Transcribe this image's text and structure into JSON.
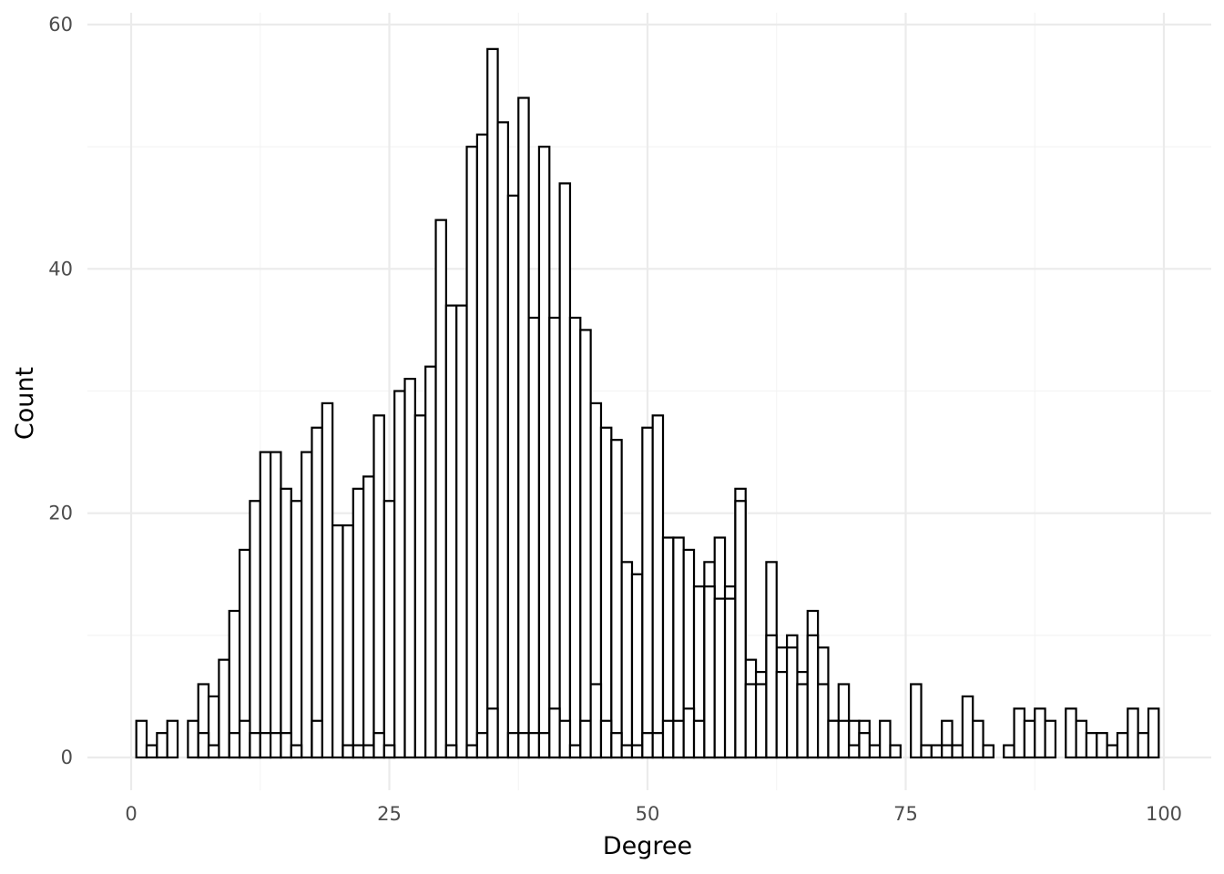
{
  "chart_data": {
    "type": "bar",
    "subtype": "histogram-overlaid",
    "title": "",
    "xlabel": "Degree",
    "ylabel": "Count",
    "xlim": [
      -4,
      101
    ],
    "ylim": [
      -3,
      61
    ],
    "x_ticks": [
      0,
      25,
      50,
      75,
      100
    ],
    "y_ticks": [
      0,
      20,
      40,
      60
    ],
    "x_tick_labels": [
      "0",
      "25",
      "50",
      "75",
      "100"
    ],
    "y_tick_labels": [
      "0",
      "20",
      "40",
      "60"
    ],
    "bin_width": 1,
    "grid": true,
    "legend": "none",
    "series": [
      {
        "x": [
          1,
          2,
          3,
          4,
          6,
          7,
          8,
          9,
          10,
          11,
          12,
          13,
          14,
          15,
          16,
          17,
          18,
          19,
          20,
          21,
          22,
          23,
          24,
          25,
          26,
          27,
          28,
          29,
          30,
          31,
          32,
          33,
          34,
          35,
          36,
          37,
          38,
          39,
          40,
          41,
          42,
          43,
          44,
          45,
          46,
          47,
          48,
          49,
          50,
          51,
          52,
          53,
          54,
          55,
          56,
          57,
          58,
          59,
          60,
          61,
          62,
          63,
          64,
          65,
          66,
          67,
          68,
          69,
          70,
          71,
          72,
          73,
          74,
          76,
          77,
          78,
          79,
          80,
          81,
          82,
          83,
          85,
          86,
          87,
          88,
          89,
          91,
          92,
          93,
          94,
          95,
          96,
          97,
          98,
          99
        ],
        "values": [
          3,
          1,
          2,
          3,
          3,
          6,
          5,
          8,
          12,
          17,
          21,
          25,
          25,
          22,
          21,
          25,
          27,
          29,
          19,
          19,
          22,
          23,
          28,
          21,
          30,
          31,
          28,
          32,
          44,
          37,
          37,
          50,
          51,
          58,
          52,
          46,
          54,
          36,
          50,
          36,
          47,
          36,
          35,
          29,
          27,
          26,
          16,
          15,
          27,
          28,
          18,
          18,
          17,
          14,
          16,
          18,
          14,
          22,
          8,
          7,
          16,
          9,
          10,
          7,
          12,
          9,
          3,
          6,
          3,
          3,
          1,
          3,
          1,
          6,
          1,
          1,
          3,
          1,
          5,
          3,
          1,
          1,
          4,
          3,
          4,
          3,
          4,
          3,
          2,
          2,
          1,
          2,
          4,
          2,
          4
        ]
      },
      {
        "x": [
          7,
          8,
          10,
          11,
          12,
          13,
          14,
          15,
          16,
          18,
          21,
          22,
          23,
          24,
          25,
          31,
          33,
          34,
          35,
          37,
          38,
          39,
          40,
          41,
          42,
          43,
          44,
          45,
          46,
          47,
          48,
          49,
          50,
          51,
          52,
          53,
          54,
          55,
          56,
          57,
          58,
          59,
          60,
          61,
          62,
          63,
          64,
          65,
          66,
          67,
          68,
          69,
          70,
          71,
          79,
          80
        ],
        "values": [
          2,
          1,
          2,
          3,
          2,
          2,
          2,
          2,
          1,
          3,
          1,
          1,
          1,
          2,
          1,
          1,
          1,
          2,
          4,
          2,
          2,
          2,
          2,
          4,
          3,
          1,
          3,
          6,
          3,
          2,
          1,
          1,
          2,
          2,
          3,
          3,
          4,
          3,
          14,
          13,
          13,
          21,
          6,
          6,
          10,
          7,
          9,
          6,
          10,
          6,
          3,
          3,
          1,
          2,
          1,
          1
        ]
      }
    ]
  }
}
